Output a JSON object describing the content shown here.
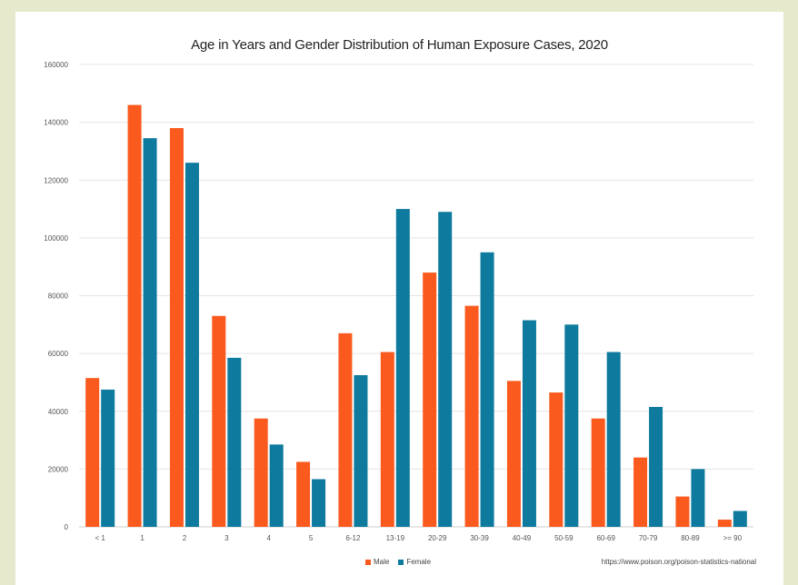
{
  "chart_data": {
    "type": "bar",
    "title": "Age in Years and Gender Distribution of Human Exposure Cases, 2020",
    "categories": [
      "< 1",
      "1",
      "2",
      "3",
      "4",
      "5",
      "6-12",
      "13-19",
      "20-29",
      "30-39",
      "40-49",
      "50-59",
      "60-69",
      "70-79",
      "80-89",
      ">= 90"
    ],
    "series": [
      {
        "name": "Male",
        "color": "#fb5a1e",
        "values": [
          51500,
          146000,
          138000,
          73000,
          37500,
          22500,
          67000,
          60500,
          88000,
          76500,
          50500,
          46500,
          37500,
          24000,
          10500,
          2500
        ]
      },
      {
        "name": "Female",
        "color": "#0d7a9e",
        "values": [
          47500,
          134500,
          126000,
          58500,
          28500,
          16500,
          52500,
          110000,
          109000,
          95000,
          71500,
          70000,
          60500,
          41500,
          20000,
          5500
        ]
      }
    ],
    "ylim": [
      0,
      160000
    ],
    "yticks": [
      0,
      20000,
      40000,
      60000,
      80000,
      100000,
      120000,
      140000,
      160000
    ],
    "grid": true,
    "legend": "bottom"
  },
  "source": "https://www.poison.org/poison-statistics-national"
}
